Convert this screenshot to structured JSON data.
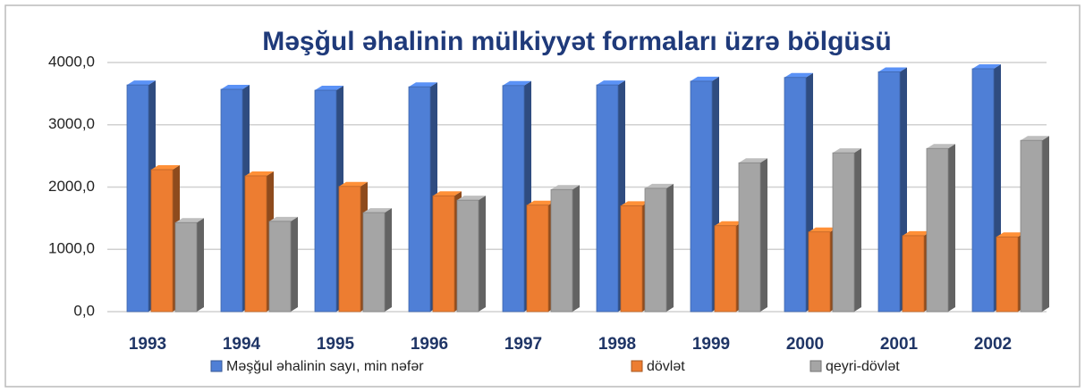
{
  "chart_data": {
    "type": "bar3d",
    "title": "Məşğul əhalinin mülkiyyət formaları üzrə bölgüsü",
    "categories": [
      "1993",
      "1994",
      "1995",
      "1996",
      "1997",
      "1998",
      "1999",
      "2000",
      "2001",
      "2002"
    ],
    "series": [
      {
        "name": "Məşğul əhalinin sayı, min nəfər",
        "color": "#4f7fd6",
        "values": [
          3640,
          3570,
          3555,
          3610,
          3630,
          3640,
          3700,
          3760,
          3850,
          3900
        ]
      },
      {
        "name": "dövlət",
        "color": "#ed7d31",
        "values": [
          2280,
          2180,
          2010,
          1860,
          1710,
          1700,
          1380,
          1280,
          1220,
          1200
        ]
      },
      {
        "name": "qeyri-dövlət",
        "color": "#a5a5a5",
        "values": [
          1430,
          1450,
          1590,
          1790,
          1960,
          1980,
          2390,
          2550,
          2620,
          2750
        ]
      }
    ],
    "ylim": [
      0,
      4000
    ],
    "yticks": [
      {
        "value": 0,
        "label": "0,0"
      },
      {
        "value": 1000,
        "label": "1000,0"
      },
      {
        "value": 2000,
        "label": "2000,0"
      },
      {
        "value": 3000,
        "label": "3000,0"
      },
      {
        "value": 4000,
        "label": "4000,0"
      }
    ],
    "grid": true
  }
}
